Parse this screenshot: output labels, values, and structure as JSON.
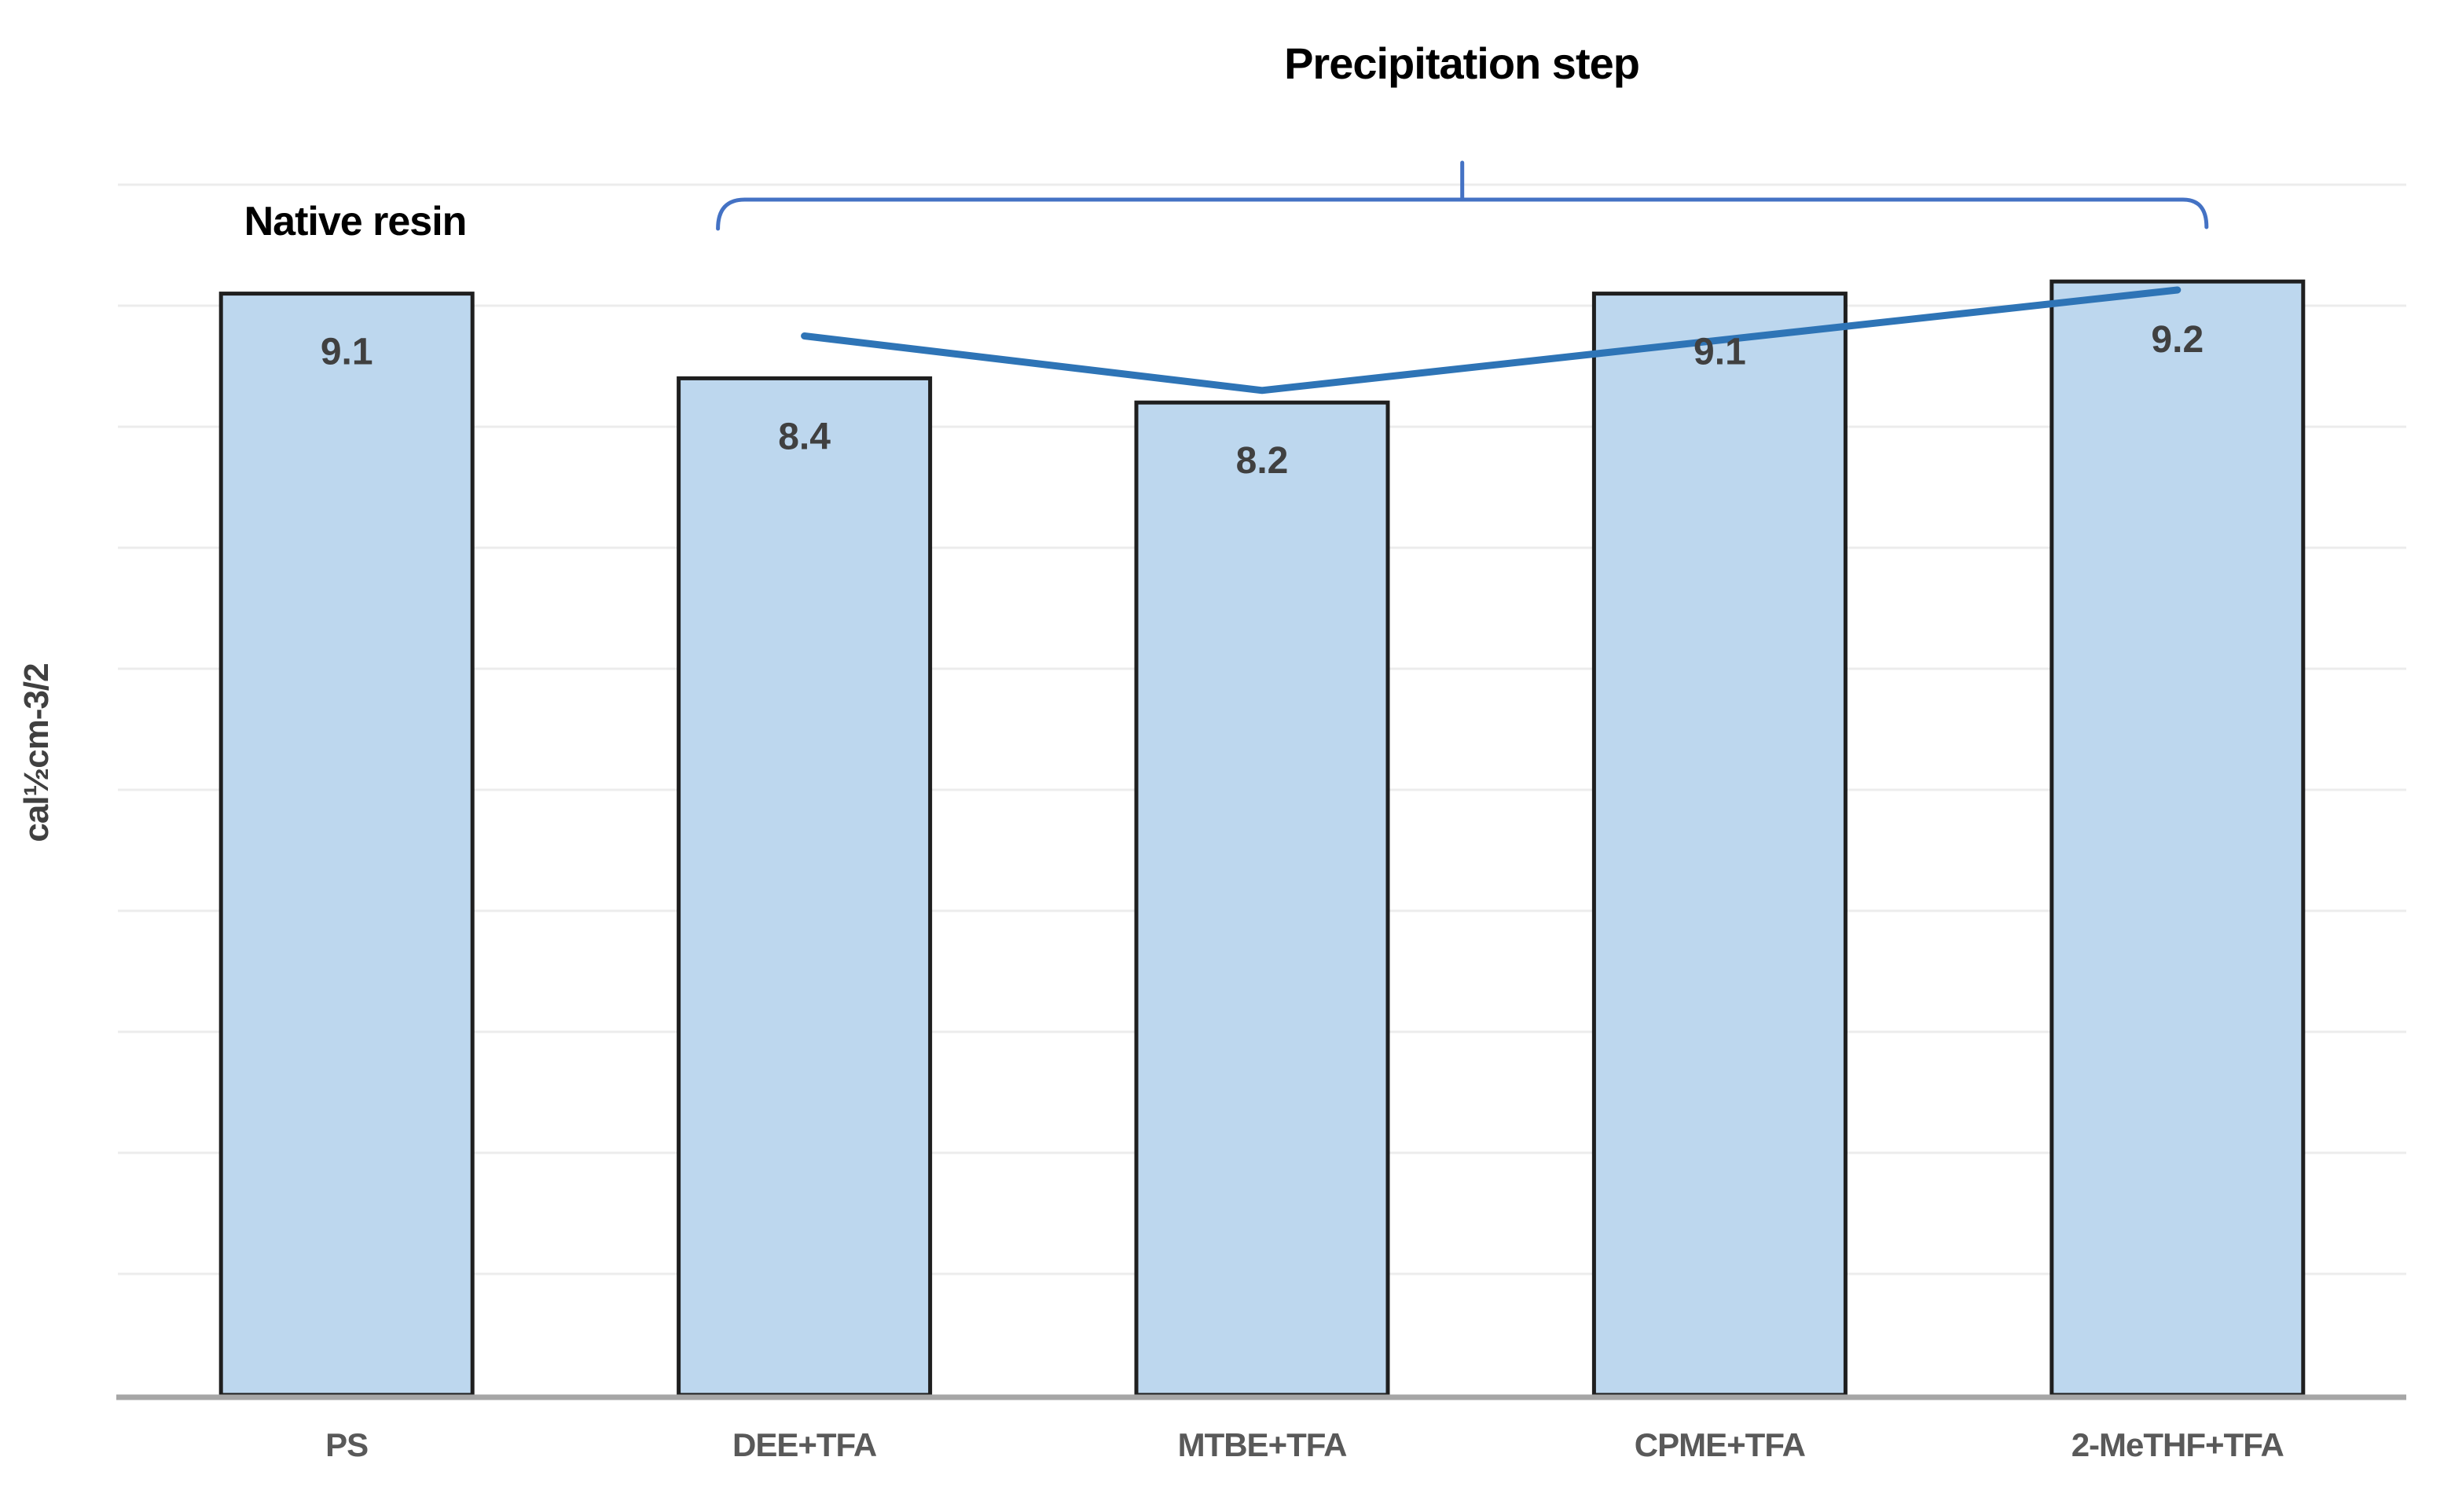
{
  "figure": {
    "title": "Precipitation step",
    "left_group_label": "Native resin",
    "y_axis_label": "cal½cm-3/2"
  },
  "chart_data": {
    "type": "bar",
    "categories": [
      "PS",
      "DEE+TFA",
      "MTBE+TFA",
      "CPME+TFA",
      "2-MeTHF+TFA"
    ],
    "values": [
      9.1,
      8.4,
      8.2,
      9.1,
      9.2
    ],
    "data_labels": [
      "9.1",
      "8.4",
      "8.2",
      "9.1",
      "9.2"
    ],
    "title": "Precipitation step",
    "xlabel": "",
    "ylabel": "cal½cm-3/2",
    "ylim": [
      0,
      10
    ],
    "grid": "horizontal gridlines every 1 unit, no y tick labels",
    "legend_position": "none",
    "annotations": [
      {
        "type": "text",
        "label": "Native resin",
        "above_category": "PS"
      },
      {
        "type": "brace",
        "label": "Precipitation step",
        "spans_categories": [
          "DEE+TFA",
          "MTBE+TFA",
          "CPME+TFA",
          "2-MeTHF+TFA"
        ]
      },
      {
        "type": "trend_line",
        "points": [
          {
            "category": "DEE+TFA",
            "value": 8.75
          },
          {
            "category": "MTBE+TFA",
            "value": 8.3
          },
          {
            "category": "2-MeTHF+TFA",
            "value": 9.13
          }
        ]
      }
    ],
    "colors": {
      "bar_fill": "#BDD7EE",
      "bar_border": "#1F1F1F",
      "trend_line": "#2E74B6",
      "brace": "#4472C4",
      "axis_line": "#A6A6A6",
      "gridline": "#ECECEC",
      "data_label": "#404040",
      "tick_label": "#595959"
    }
  }
}
